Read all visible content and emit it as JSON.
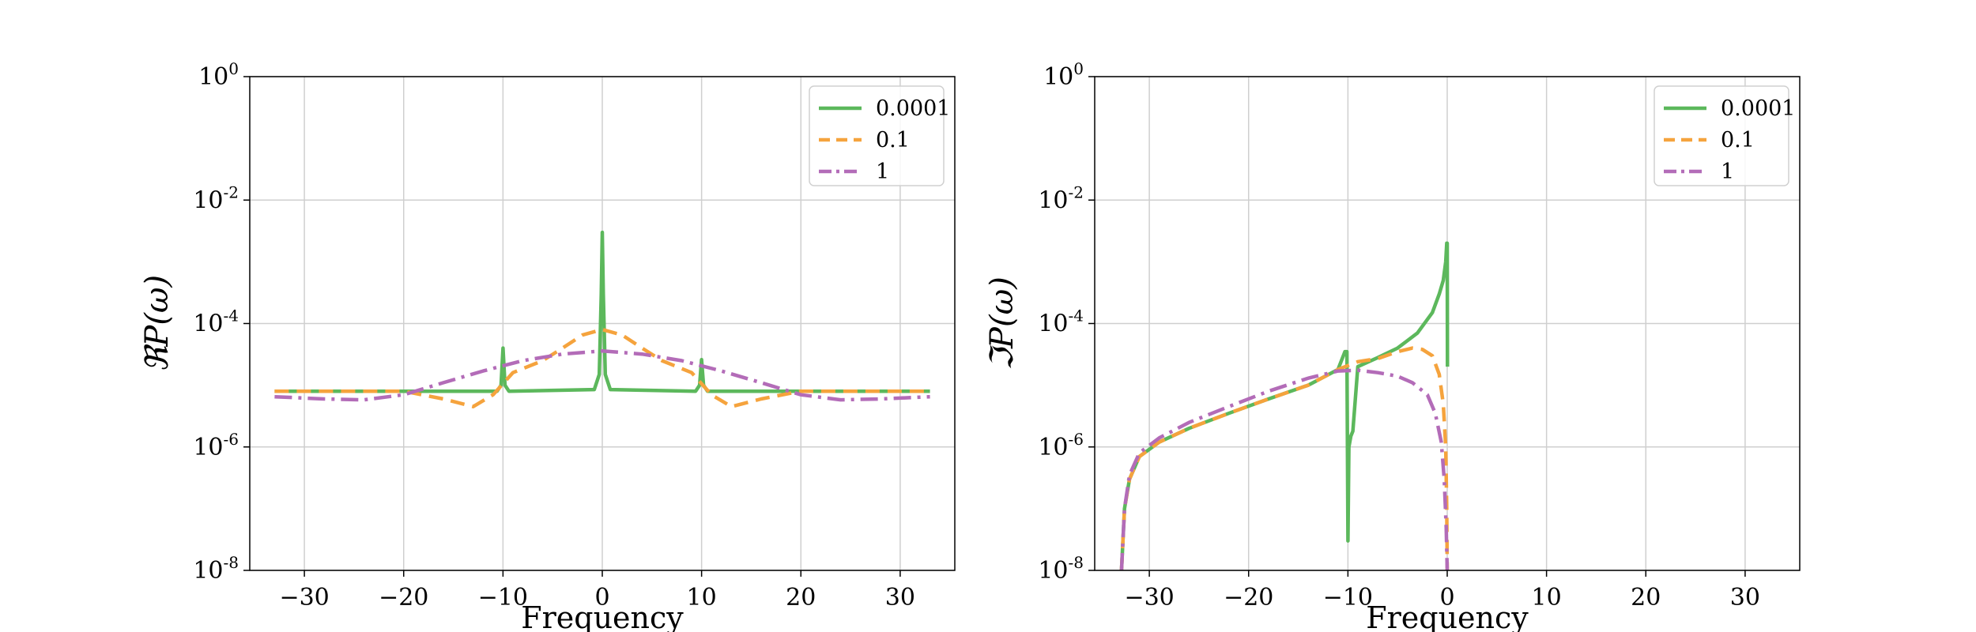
{
  "chart_data": [
    {
      "type": "line",
      "title": "",
      "xlabel": "Frequency",
      "ylabel": "ℜP(ω)",
      "xlim": [
        -35.5,
        35.5
      ],
      "ylim": [
        1e-08,
        1
      ],
      "yscale": "log",
      "xticks": [
        -30,
        -20,
        -10,
        0,
        10,
        20,
        30
      ],
      "xtick_labels": [
        "−30",
        "−20",
        "−10",
        "0",
        "10",
        "20",
        "30"
      ],
      "yticks": [
        1e-08,
        1e-06,
        0.0001,
        0.01,
        1
      ],
      "ytick_labels": [
        {
          "base": "10",
          "exp": "-8"
        },
        {
          "base": "10",
          "exp": "-6"
        },
        {
          "base": "10",
          "exp": "-4"
        },
        {
          "base": "10",
          "exp": "-2"
        },
        {
          "base": "10",
          "exp": "0"
        }
      ],
      "grid": true,
      "legend": "top-right",
      "series": [
        {
          "name": "0.0001",
          "color": "#5cb85c",
          "dash": "solid",
          "x": [
            -33,
            -10.6,
            -10.2,
            -10,
            -9.8,
            -9.4,
            -0.8,
            -0.3,
            -0.1,
            0,
            0.1,
            0.3,
            0.8,
            9.4,
            9.8,
            10,
            10.2,
            10.6,
            33
          ],
          "y": [
            8e-06,
            8e-06,
            1e-05,
            4e-05,
            1e-05,
            8e-06,
            8.5e-06,
            1.5e-05,
            0.0003,
            0.003,
            0.0003,
            1.5e-05,
            8.5e-06,
            8e-06,
            1e-05,
            2.6e-05,
            1e-05,
            8e-06,
            8e-06
          ]
        },
        {
          "name": "0.1",
          "color": "#f5a33d",
          "dash": "dashed",
          "x": [
            -33,
            -28,
            -20,
            -16,
            -13,
            -11,
            -9,
            -6,
            -4,
            -2,
            0,
            2,
            4,
            6,
            9,
            11,
            13,
            16,
            20,
            28,
            33
          ],
          "y": [
            8e-06,
            8e-06,
            8e-06,
            6e-06,
            4.5e-06,
            7e-06,
            1.6e-05,
            2.5e-05,
            4e-05,
            6.5e-05,
            8e-05,
            6.5e-05,
            4e-05,
            2.5e-05,
            1.6e-05,
            7e-06,
            4.5e-06,
            6e-06,
            8e-06,
            8e-06,
            8e-06
          ]
        },
        {
          "name": "1",
          "color": "#b36cb8",
          "dash": "dashdot",
          "x": [
            -33,
            -28,
            -24,
            -20,
            -16,
            -12,
            -8,
            -4,
            0,
            4,
            8,
            12,
            16,
            20,
            24,
            28,
            33
          ],
          "y": [
            6.5e-06,
            6e-06,
            5.8e-06,
            7e-06,
            1.1e-05,
            1.7e-05,
            2.5e-05,
            3.2e-05,
            3.6e-05,
            3.2e-05,
            2.5e-05,
            1.7e-05,
            1.1e-05,
            7e-06,
            5.8e-06,
            6e-06,
            6.5e-06
          ]
        }
      ]
    },
    {
      "type": "line",
      "title": "",
      "xlabel": "Frequency",
      "ylabel": "ℑP(ω)",
      "xlim": [
        -35.5,
        35.5
      ],
      "ylim": [
        1e-08,
        1
      ],
      "yscale": "log",
      "xticks": [
        -30,
        -20,
        -10,
        0,
        10,
        20,
        30
      ],
      "xtick_labels": [
        "−30",
        "−20",
        "−10",
        "0",
        "10",
        "20",
        "30"
      ],
      "yticks": [
        1e-08,
        1e-06,
        0.0001,
        0.01,
        1
      ],
      "ytick_labels": [
        {
          "base": "10",
          "exp": "-8"
        },
        {
          "base": "10",
          "exp": "-6"
        },
        {
          "base": "10",
          "exp": "-4"
        },
        {
          "base": "10",
          "exp": "-2"
        },
        {
          "base": "10",
          "exp": "0"
        }
      ],
      "grid": true,
      "legend": "top-right",
      "series": [
        {
          "name": "0.0001",
          "color": "#5cb85c",
          "dash": "solid",
          "x": [
            -32.8,
            -32.5,
            -32,
            -31,
            -29,
            -26,
            -22,
            -18,
            -14,
            -11,
            -10.3,
            -10.1,
            -10,
            -9.9,
            -9.7,
            -9.5,
            -9,
            -7,
            -5,
            -3,
            -1.5,
            -0.8,
            -0.4,
            -0.15,
            -0.05,
            0,
            0.02
          ],
          "y": [
            1e-08,
            1e-07,
            3e-07,
            7e-07,
            1.2e-06,
            2e-06,
            3.5e-06,
            6e-06,
            1e-05,
            1.8e-05,
            3.5e-05,
            3.5e-05,
            3e-08,
            1e-06,
            1.5e-06,
            1.8e-06,
            2e-05,
            2.8e-05,
            4e-05,
            7e-05,
            0.00015,
            0.0003,
            0.0005,
            0.001,
            0.002,
            0.002,
            2e-05
          ]
        },
        {
          "name": "0.1",
          "color": "#f5a33d",
          "dash": "dashed",
          "x": [
            -32.8,
            -32.5,
            -32,
            -31,
            -29,
            -26,
            -22,
            -18,
            -14,
            -11,
            -9,
            -7,
            -5,
            -3.5,
            -2.5,
            -1.5,
            -0.8,
            -0.4,
            -0.15,
            -0.05,
            0
          ],
          "y": [
            1e-08,
            1e-07,
            3e-07,
            7e-07,
            1.2e-06,
            2e-06,
            3.5e-06,
            6e-06,
            1e-05,
            1.8e-05,
            2.4e-05,
            2.7e-05,
            3.5e-05,
            4e-05,
            3.8e-05,
            3e-05,
            1.5e-05,
            5e-06,
            1e-06,
            1e-07,
            1e-08
          ]
        },
        {
          "name": "1",
          "color": "#b36cb8",
          "dash": "dashdot",
          "x": [
            -32.8,
            -32.5,
            -32,
            -31,
            -29,
            -26,
            -22,
            -18,
            -14,
            -11,
            -9,
            -7,
            -5,
            -3.5,
            -2,
            -1.2,
            -0.6,
            -0.3,
            -0.1,
            0
          ],
          "y": [
            1e-08,
            1e-07,
            3.5e-07,
            8e-07,
            1.4e-06,
            2.5e-06,
            4.5e-06,
            8e-06,
            1.3e-05,
            1.7e-05,
            1.75e-05,
            1.6e-05,
            1.4e-05,
            1.1e-05,
            7e-06,
            3.5e-06,
            1.2e-06,
            3e-07,
            5e-08,
            1e-08
          ]
        }
      ]
    }
  ]
}
